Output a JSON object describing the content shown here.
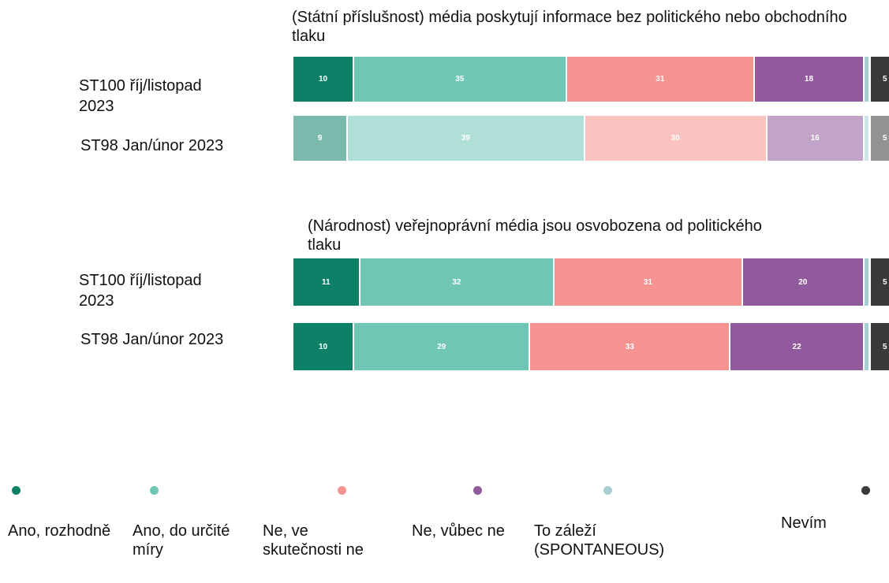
{
  "chart_data": [
    {
      "type": "stacked-bar",
      "title": "(Státní příslušnost) média poskytují informace bez politického nebo obchodního tlaku",
      "categories": [
        "ST100 říj/listopad 2023",
        "ST98 Jan/únor 2023"
      ],
      "xlim": [
        0,
        100
      ],
      "faded_categories": [
        1
      ],
      "series": [
        {
          "name": "Ano, rozhodně",
          "color": "#0e8068",
          "values": [
            10,
            9
          ]
        },
        {
          "name": "Ano, do určité míry",
          "color": "#6fc6b5",
          "values": [
            35,
            39
          ]
        },
        {
          "name": "Ne, ve skutečnosti ne",
          "color": "#f4938f",
          "values": [
            31,
            30
          ]
        },
        {
          "name": "Ne, vůbec ne",
          "color": "#915a9c",
          "values": [
            18,
            16
          ]
        },
        {
          "name": "To záleží (SPONTANEOUS)",
          "color": "#a7cfd3",
          "values": [
            1,
            1
          ],
          "show_labels": false
        },
        {
          "name": "Nevím",
          "color": "#3a3a3a",
          "values": [
            5,
            5
          ]
        }
      ]
    },
    {
      "type": "stacked-bar",
      "title": "(Národnost) veřejnoprávní média jsou osvobozena od politického tlaku",
      "categories": [
        "ST100 říj/listopad 2023",
        "ST98 Jan/únor 2023"
      ],
      "xlim": [
        0,
        100
      ],
      "series": [
        {
          "name": "Ano, rozhodně",
          "color": "#0e8068",
          "values": [
            11,
            10
          ]
        },
        {
          "name": "Ano, do určité míry",
          "color": "#6fc6b5",
          "values": [
            32,
            29
          ]
        },
        {
          "name": "Ne, ve skutečnosti ne",
          "color": "#f4938f",
          "values": [
            31,
            33
          ]
        },
        {
          "name": "Ne, vůbec ne",
          "color": "#915a9c",
          "values": [
            20,
            22
          ]
        },
        {
          "name": "To záleží (SPONTANEOUS)",
          "color": "#a7cfd3",
          "values": [
            1,
            1
          ],
          "show_labels": false
        },
        {
          "name": "Nevím",
          "color": "#3a3a3a",
          "values": [
            5,
            5
          ]
        }
      ]
    }
  ]
}
